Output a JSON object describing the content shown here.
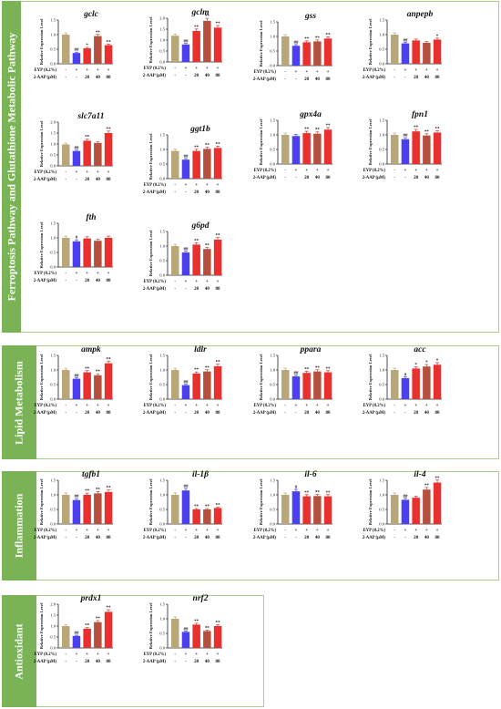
{
  "colors": {
    "panel_border": "#a9cf8a",
    "panel_label_bg": "#7ab356",
    "control": "#b9a77a",
    "model": "#4b3ff0",
    "low": "#e8302f",
    "mid": "#b5503f",
    "high": "#e8302f"
  },
  "common": {
    "ylabel": "Relative Expression Level",
    "row_labels": [
      "EYP (0.2%)",
      "2-AAP (μM)"
    ],
    "row1": [
      "-",
      "+",
      "+",
      "+",
      "+"
    ],
    "row2": [
      "-",
      "-",
      "20",
      "40",
      "80"
    ]
  },
  "panels": [
    {
      "label": "Ferroptosis Pathway and Glutathione Metabolic Pathway"
    },
    {
      "label": "Lipid Metabolism"
    },
    {
      "label": "Inflammation"
    },
    {
      "label": "Antioxidant"
    }
  ],
  "chart_data": [
    {
      "type": "bar",
      "title": "gclc",
      "ylim": [
        0,
        1.5
      ],
      "yticks": [
        "0.0",
        "0.5",
        "1.0",
        "1.5"
      ],
      "values": [
        1.0,
        0.37,
        0.53,
        0.95,
        0.64
      ],
      "marks": [
        "",
        "##",
        "*",
        "**",
        "**"
      ]
    },
    {
      "type": "bar",
      "title": "gclm",
      "ylim": [
        0,
        2.0
      ],
      "yticks": [
        "0.0",
        "0.5",
        "1.0",
        "1.5",
        "2.0"
      ],
      "values": [
        1.2,
        0.8,
        1.42,
        1.88,
        1.57
      ],
      "marks": [
        "",
        "##",
        "**",
        "**",
        "**"
      ]
    },
    {
      "type": "bar",
      "title": "gss",
      "ylim": [
        0,
        1.5
      ],
      "yticks": [
        "0.0",
        "0.5",
        "1.0",
        "1.5"
      ],
      "values": [
        1.0,
        0.68,
        0.8,
        0.83,
        0.93
      ],
      "marks": [
        "",
        "##",
        "**",
        "**",
        "**"
      ]
    },
    {
      "type": "bar",
      "title": "anpepb",
      "ylim": [
        0,
        1.5
      ],
      "yticks": [
        "0.0",
        "0.5",
        "1.0",
        "1.5"
      ],
      "values": [
        1.0,
        0.7,
        0.8,
        0.72,
        0.83
      ],
      "marks": [
        "",
        "##",
        "",
        "",
        "*"
      ]
    },
    {
      "type": "bar",
      "title": "slc7a11",
      "ylim": [
        0,
        2.0
      ],
      "yticks": [
        "0.0",
        "0.5",
        "1.0",
        "1.5",
        "2.0"
      ],
      "values": [
        0.98,
        0.68,
        1.15,
        1.05,
        1.5
      ],
      "marks": [
        "",
        "##",
        "**",
        "",
        "**"
      ]
    },
    {
      "type": "bar",
      "title": "ggt1b",
      "ylim": [
        0,
        1.5
      ],
      "yticks": [
        "0.0",
        "0.5",
        "1.0",
        "1.5"
      ],
      "values": [
        0.95,
        0.65,
        0.95,
        1.02,
        1.05
      ],
      "marks": [
        "",
        "##",
        "**",
        "**",
        "**"
      ]
    },
    {
      "type": "bar",
      "title": "gpx4a",
      "ylim": [
        0,
        1.5
      ],
      "yticks": [
        "0.0",
        "0.5",
        "1.0",
        "1.5"
      ],
      "values": [
        1.0,
        0.96,
        1.06,
        1.04,
        1.18
      ],
      "marks": [
        "",
        "",
        "**",
        "**",
        "**"
      ]
    },
    {
      "type": "bar",
      "title": "fpn1",
      "ylim": [
        0,
        1.5
      ],
      "yticks": [
        "0.0",
        "0.5",
        "1.0",
        "1.5"
      ],
      "values": [
        1.0,
        0.85,
        1.12,
        0.98,
        1.08
      ],
      "marks": [
        "",
        "##",
        "**",
        "**",
        "**"
      ]
    },
    {
      "type": "bar",
      "title": "fth",
      "ylim": [
        0,
        1.5
      ],
      "yticks": [
        "0.0",
        "0.5",
        "1.0",
        "1.5"
      ],
      "values": [
        1.0,
        0.88,
        0.98,
        0.9,
        1.0
      ],
      "marks": [
        "",
        "#",
        "",
        "",
        ""
      ]
    },
    {
      "type": "bar",
      "title": "g6pd",
      "ylim": [
        0,
        1.5
      ],
      "yticks": [
        "0.0",
        "0.5",
        "1.0",
        "1.5"
      ],
      "values": [
        1.0,
        0.78,
        1.05,
        0.9,
        1.22
      ],
      "marks": [
        "",
        "##",
        "**",
        "**",
        "**"
      ]
    },
    {
      "type": "bar",
      "title": "ampk",
      "ylim": [
        0,
        1.5
      ],
      "yticks": [
        "0.0",
        "0.5",
        "1.0",
        "1.5"
      ],
      "values": [
        1.0,
        0.7,
        0.92,
        0.82,
        1.23
      ],
      "marks": [
        "",
        "##",
        "**",
        "**",
        "**"
      ]
    },
    {
      "type": "bar",
      "title": "ldlr",
      "ylim": [
        0,
        1.5
      ],
      "yticks": [
        "0.0",
        "0.5",
        "1.0",
        "1.5"
      ],
      "values": [
        1.0,
        0.48,
        0.88,
        0.95,
        1.13
      ],
      "marks": [
        "",
        "##",
        "**",
        "**",
        "**"
      ]
    },
    {
      "type": "bar",
      "title": "ppara",
      "ylim": [
        0,
        1.5
      ],
      "yticks": [
        "0.0",
        "0.5",
        "1.0",
        "1.5"
      ],
      "values": [
        1.0,
        0.78,
        0.9,
        0.95,
        0.92
      ],
      "marks": [
        "",
        "##",
        "**",
        "**",
        "**"
      ]
    },
    {
      "type": "bar",
      "title": "acc",
      "ylim": [
        0,
        1.5
      ],
      "yticks": [
        "0.0",
        "0.5",
        "1.0",
        "1.5"
      ],
      "values": [
        1.0,
        0.72,
        1.05,
        1.12,
        1.18
      ],
      "marks": [
        "",
        "#",
        "*",
        "*",
        "*"
      ]
    },
    {
      "type": "bar",
      "title": "tgfb1",
      "ylim": [
        0,
        1.5
      ],
      "yticks": [
        "0.0",
        "0.5",
        "1.0",
        "1.5"
      ],
      "values": [
        1.0,
        0.82,
        1.0,
        1.05,
        1.1
      ],
      "marks": [
        "",
        "##",
        "**",
        "**",
        "**"
      ]
    },
    {
      "type": "bar",
      "title": "il-1β",
      "ylim": [
        0,
        1.5
      ],
      "yticks": [
        "0.0",
        "0.5",
        "1.0",
        "1.5"
      ],
      "values": [
        1.0,
        1.15,
        0.5,
        0.5,
        0.55
      ],
      "marks": [
        "",
        "##",
        "**",
        "**",
        "**"
      ]
    },
    {
      "type": "bar",
      "title": "il-6",
      "ylim": [
        0,
        1.5
      ],
      "yticks": [
        "0.0",
        "0.5",
        "1.0",
        "1.5"
      ],
      "values": [
        1.0,
        1.12,
        0.95,
        0.96,
        0.95
      ],
      "marks": [
        "",
        "#",
        "**",
        "**",
        "**"
      ]
    },
    {
      "type": "bar",
      "title": "il-4",
      "ylim": [
        0,
        1.5
      ],
      "yticks": [
        "0.0",
        "0.5",
        "1.0",
        "1.5"
      ],
      "values": [
        1.0,
        0.83,
        0.9,
        1.18,
        1.42
      ],
      "marks": [
        "",
        "##",
        "",
        "**",
        "**"
      ]
    },
    {
      "type": "bar",
      "title": "prdx1",
      "ylim": [
        0,
        2.0
      ],
      "yticks": [
        "0.0",
        "0.5",
        "1.0",
        "1.5",
        "2.0"
      ],
      "values": [
        1.0,
        0.55,
        0.88,
        1.18,
        1.65
      ],
      "marks": [
        "",
        "##",
        "**",
        "**",
        "**"
      ]
    },
    {
      "type": "bar",
      "title": "nrf2",
      "ylim": [
        0,
        1.5
      ],
      "yticks": [
        "0.0",
        "0.5",
        "1.0",
        "1.5"
      ],
      "values": [
        1.0,
        0.55,
        0.8,
        0.58,
        0.75
      ],
      "marks": [
        "",
        "##",
        "**",
        "**",
        "**"
      ]
    }
  ]
}
